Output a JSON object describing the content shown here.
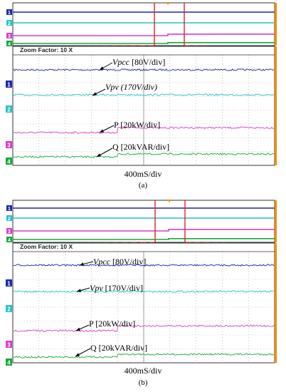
{
  "colors": {
    "ch1": "#1f2aa8",
    "ch2": "#27c2c2",
    "ch3": "#d63fc7",
    "ch4": "#17a83a",
    "marker": "#e0202a",
    "trigger": "#ff8a00",
    "grid": "#9a9a9a",
    "frame": "#333333",
    "right_bar": "#f08c00"
  },
  "panel_a": {
    "zoom_text": "Zoom Factor: 10 X",
    "time_div": "400mS/div",
    "letter": "(a)",
    "ann": {
      "vpcc_name": "Vpcc",
      "vpcc_scale": " [80V/div]",
      "vpv_name": "Vpv",
      "vpv_scale": " (170V/div)",
      "p_label": "P [20kW/div]",
      "q_label": "Q [20kVAR/div]"
    }
  },
  "panel_b": {
    "zoom_text": "Zoom Factor: 10 X",
    "time_div": "400mS/div",
    "letter": "(b)",
    "ann": {
      "vpcc_name": "Vpcc",
      "vpcc_scale": " [80V/div]",
      "vpv_name": "Vpv",
      "vpv_scale": " [170V/div]",
      "p_label": "P [20kW/div]",
      "q_label": "Q [20kVAR/div]"
    }
  },
  "chart_data": [
    {
      "type": "line",
      "panel": "a",
      "zoom_factor": "10 X",
      "time_per_div": "400mS/div",
      "x_divisions": 10,
      "step_at_division": 4,
      "series": [
        {
          "name": "Vpcc",
          "channel": 1,
          "scale": "80V/div",
          "before": 0,
          "after": 0
        },
        {
          "name": "Vpv",
          "channel": 2,
          "scale": "170V/div",
          "before": 0,
          "after": 0
        },
        {
          "name": "P",
          "channel": 3,
          "scale": "20kW/div",
          "before": 0,
          "after": 0.35
        },
        {
          "name": "Q",
          "channel": 4,
          "scale": "20kVAR/div",
          "before": 0,
          "after": 0.2
        }
      ],
      "grid": true
    },
    {
      "type": "line",
      "panel": "b",
      "zoom_factor": "10 X",
      "time_per_div": "400mS/div",
      "x_divisions": 10,
      "step_at_division": 4,
      "series": [
        {
          "name": "Vpcc",
          "channel": 1,
          "scale": "80V/div",
          "before": 0,
          "after": 0
        },
        {
          "name": "Vpv",
          "channel": 2,
          "scale": "170V/div",
          "before": 0,
          "after": 0
        },
        {
          "name": "P",
          "channel": 3,
          "scale": "20kW/div",
          "before": 0,
          "after": 0.35
        },
        {
          "name": "Q",
          "channel": 4,
          "scale": "20kVAR/div",
          "before": 0,
          "after": 0.2
        }
      ],
      "grid": true
    }
  ]
}
